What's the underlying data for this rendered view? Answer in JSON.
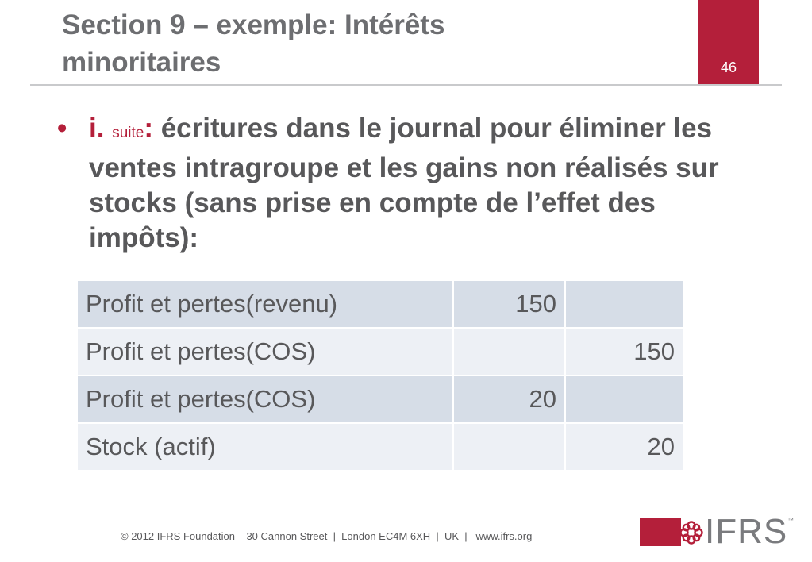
{
  "header": {
    "title_line1": "Section 9 – exemple: Intérêts",
    "title_line2": "minoritaires",
    "page_number": "46"
  },
  "bullet": {
    "dot": "•",
    "marker": "i.",
    "suite": "suite",
    "colon": ":",
    "text": "écritures dans le journal pour éliminer les ventes intragroupe et les gains non réalisés sur stocks (sans prise en compte de l’effet des impôts):"
  },
  "journal": {
    "rows": [
      {
        "account": "Profit et pertes(revenu)",
        "debit": "150",
        "credit": ""
      },
      {
        "account": "Profit et pertes(COS)",
        "debit": "",
        "credit": "150"
      },
      {
        "account": "Profit et pertes(COS)",
        "debit": "20",
        "credit": ""
      },
      {
        "account": "Stock (actif)",
        "debit": "",
        "credit": "20"
      }
    ]
  },
  "footer": {
    "text": "© 2012 IFRS Foundation    30 Cannon Street  |  London EC4M 6XH  |  UK  |   www.ifrs.org"
  },
  "logo": {
    "text": "IFRS",
    "tm": "™",
    "brand_color": "#b41f3a"
  }
}
